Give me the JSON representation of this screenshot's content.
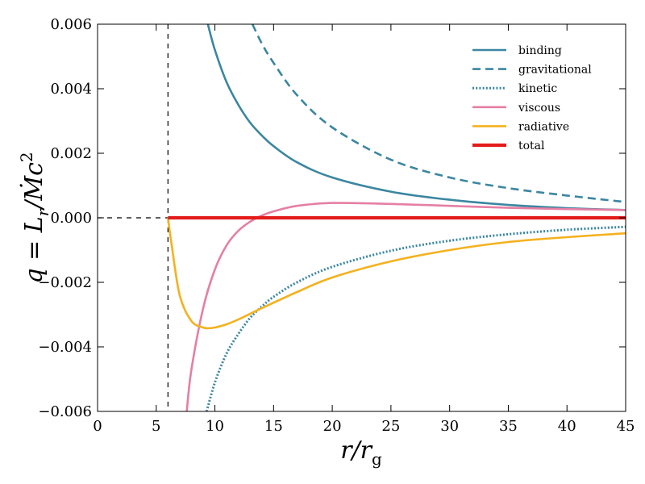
{
  "chart_data": {
    "type": "line",
    "xlabel": "r/r_g",
    "ylabel": "q = L_r / Ṁc²",
    "xlabel_parts": {
      "main": "r/r",
      "sub": "g"
    },
    "ylabel_parts": {
      "main": "q = L",
      "sub": "r",
      "tail": "/Ṁc",
      "sup": "2"
    },
    "xlim": [
      0,
      45
    ],
    "ylim": [
      -0.006,
      0.006
    ],
    "xticks": [
      0,
      5,
      10,
      15,
      20,
      25,
      30,
      35,
      40,
      45
    ],
    "xtick_labels": [
      "0",
      "5",
      "10",
      "15",
      "20",
      "25",
      "30",
      "35",
      "40",
      "45"
    ],
    "yticks": [
      -0.006,
      -0.004,
      -0.002,
      0.0,
      0.002,
      0.004,
      0.006
    ],
    "ytick_labels": [
      "−0.006",
      "−0.004",
      "−0.002",
      "0.000",
      "0.002",
      "0.004",
      "0.006"
    ],
    "reference_lines": {
      "vertical_x": 6,
      "horizontal_y": 0
    },
    "legend_position": "top-right",
    "series": [
      {
        "name": "binding",
        "color": "#3b86a0",
        "style": "solid",
        "x": [
          9.4,
          10,
          11,
          12,
          13,
          14,
          15,
          17,
          20,
          25,
          30,
          35,
          40,
          45
        ],
        "y": [
          0.006,
          0.0052,
          0.0042,
          0.0035,
          0.00295,
          0.00255,
          0.00222,
          0.00172,
          0.00125,
          0.00081,
          0.00056,
          0.0004,
          0.0003,
          0.00024
        ]
      },
      {
        "name": "gravitational",
        "color": "#3b86a0",
        "style": "dashed",
        "x": [
          13.2,
          14,
          15,
          17,
          20,
          25,
          30,
          35,
          40,
          45
        ],
        "y": [
          0.006,
          0.0054,
          0.0048,
          0.0038,
          0.0028,
          0.0018,
          0.00125,
          0.00092,
          0.00069,
          0.00049
        ]
      },
      {
        "name": "kinetic",
        "color": "#3b86a0",
        "style": "dotted",
        "x": [
          9.3,
          10,
          11,
          12,
          13,
          14,
          15,
          17,
          20,
          25,
          30,
          35,
          40,
          45
        ],
        "y": [
          -0.006,
          -0.0051,
          -0.0042,
          -0.0036,
          -0.0031,
          -0.00275,
          -0.00245,
          -0.002,
          -0.00152,
          -0.00102,
          -0.00071,
          -0.00051,
          -0.00037,
          -0.00028
        ]
      },
      {
        "name": "viscous",
        "color": "#e57fa4",
        "style": "solid",
        "x": [
          7.6,
          8,
          9,
          10,
          11,
          12,
          13,
          14,
          15,
          17,
          20,
          25,
          30,
          35,
          40,
          45
        ],
        "y": [
          -0.006,
          -0.0047,
          -0.0028,
          -0.0016,
          -0.00085,
          -0.0004,
          -0.00012,
          7e-05,
          0.0002,
          0.00037,
          0.00046,
          0.00043,
          0.00037,
          0.00031,
          0.00027,
          0.00024
        ]
      },
      {
        "name": "radiative",
        "color": "#f4b11f",
        "style": "solid",
        "x": [
          6,
          6.3,
          7,
          8,
          9,
          9.5,
          10,
          11,
          12,
          14,
          17,
          20,
          25,
          30,
          35,
          40,
          45
        ],
        "y": [
          0,
          -0.0008,
          -0.0024,
          -0.0032,
          -0.0034,
          -0.00342,
          -0.0034,
          -0.0033,
          -0.00315,
          -0.0028,
          -0.0023,
          -0.00185,
          -0.00135,
          -0.001,
          -0.00075,
          -0.0006,
          -0.00048
        ]
      },
      {
        "name": "total",
        "color": "#e31c1c",
        "style": "thick",
        "x": [
          6,
          45
        ],
        "y": [
          0,
          0
        ]
      }
    ]
  }
}
